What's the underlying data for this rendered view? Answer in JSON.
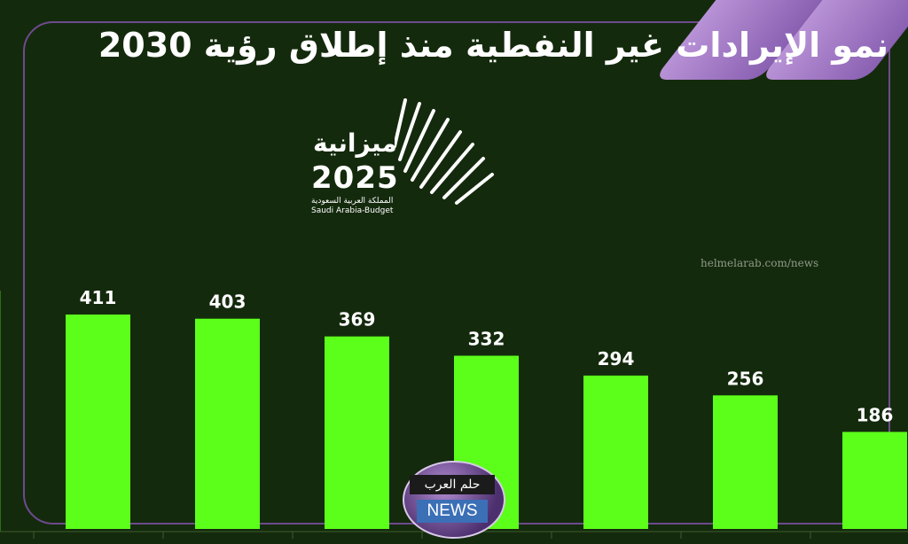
{
  "header": {
    "title": "نمو الإيرادات غير النفطية منذ إطلاق رؤية 2030"
  },
  "logo": {
    "arabic_name": "ميزانية",
    "year": "2025",
    "arabic_sub": "المملكة العربية السعودية",
    "english_sub": "Saudi Arabia-Budget"
  },
  "watermark": {
    "text": "helmelarab.com/news"
  },
  "badge": {
    "arabic": "حلم العرب",
    "english": "NEWS"
  },
  "colors": {
    "background": "#142a0d",
    "bar": "#5cff1a",
    "frame": "#6e4a8e"
  },
  "chart_data": {
    "type": "bar",
    "values": [
      411,
      403,
      369,
      332,
      294,
      256,
      186
    ],
    "data_labels": [
      "411",
      "403",
      "369",
      "332",
      "294",
      "256",
      "186"
    ],
    "ylim": [
      0,
      411
    ],
    "grid": false,
    "legend": "none"
  }
}
